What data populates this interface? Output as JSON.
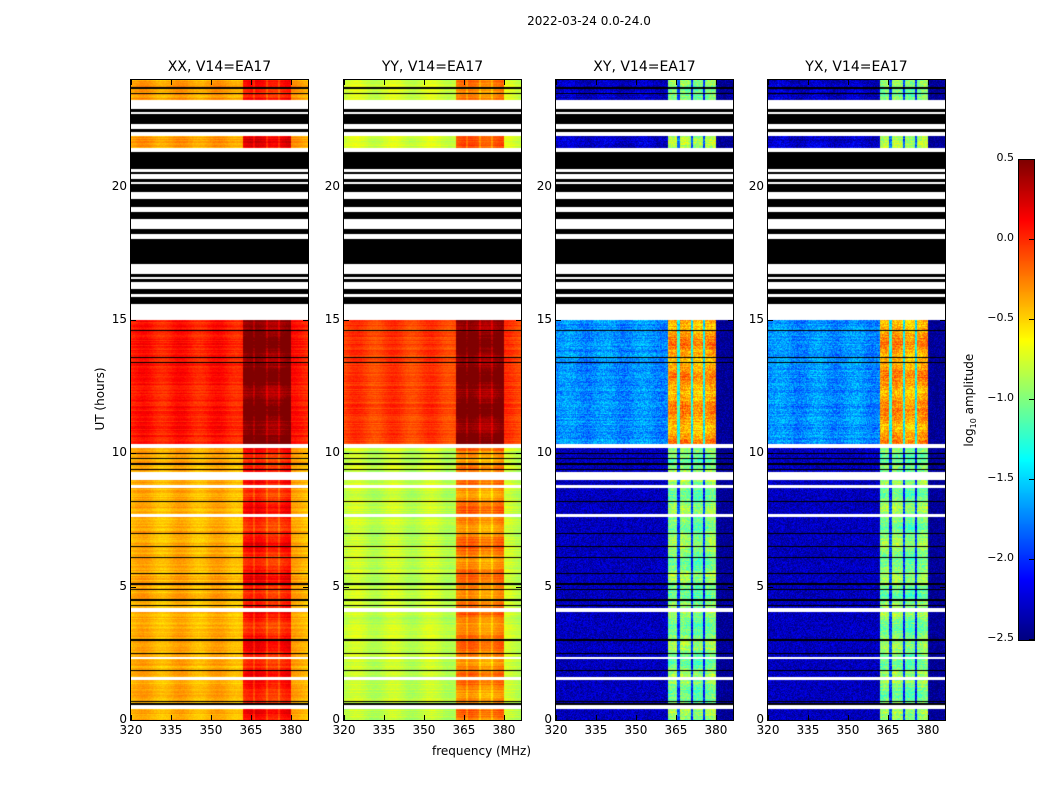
{
  "chart_data": {
    "type": "heatmap",
    "title": "2022-03-24 0.0-24.0",
    "xlabel": "frequency (MHz)",
    "ylabel": "UT (hours)",
    "xlim": [
      320,
      386.4
    ],
    "ylim": [
      0,
      24
    ],
    "xticks": [
      "320",
      "335",
      "350",
      "365",
      "380"
    ],
    "xtick_values": [
      320,
      335,
      350,
      365,
      380
    ],
    "yticks": [
      "0",
      "5",
      "10",
      "15",
      "20"
    ],
    "ytick_values": [
      0,
      5,
      10,
      15,
      20
    ],
    "colormap": "jet",
    "colorbar": {
      "label_main": "log",
      "label_sub": "10",
      "label_rest": " amplitude",
      "range": [
        -2.5,
        0.5
      ],
      "ticks": [
        "0.5",
        "0.0",
        "−0.5",
        "−1.0",
        "−1.5",
        "−2.0",
        "−2.5"
      ],
      "tick_values": [
        0.5,
        0.0,
        -0.5,
        -1.0,
        -1.5,
        -2.0,
        -2.5
      ]
    },
    "panels": [
      {
        "title": "XX, V14=EA17",
        "level_0_10": -0.4,
        "level_10_15": 0.05,
        "level_21_24": -0.35,
        "band_boost": 0.45,
        "cross": false
      },
      {
        "title": "YY, V14=EA17",
        "level_0_10": -0.8,
        "level_10_15": -0.05,
        "level_21_24": -0.75,
        "band_boost": 0.55,
        "cross": false
      },
      {
        "title": "XY, V14=EA17",
        "level_0_10": -2.35,
        "level_10_15": -1.7,
        "level_21_24": -2.3,
        "band_boost": 1.35,
        "cross": true
      },
      {
        "title": "YX, V14=EA17",
        "level_0_10": -2.35,
        "level_10_15": -1.7,
        "level_21_24": -2.3,
        "band_boost": 1.35,
        "cross": true
      }
    ],
    "rfi_band_mhz": [
      362,
      380
    ],
    "band_notches_mhz": [
      366,
      371,
      375.5
    ],
    "flagged_hours": [
      [
        0.4,
        0.55
      ],
      [
        1.5,
        1.6
      ],
      [
        2.3,
        2.36
      ],
      [
        4.05,
        4.2
      ],
      [
        7.6,
        7.72
      ],
      [
        8.7,
        8.8
      ],
      [
        9.0,
        9.3
      ],
      [
        10.2,
        10.36
      ],
      [
        15.0,
        15.6
      ],
      [
        21.3,
        21.45
      ],
      [
        21.9,
        22.05
      ],
      [
        22.9,
        23.25
      ]
    ],
    "black_block_hours": [
      20.7,
      21.3
    ],
    "striped_hours": [
      [
        15.6,
        20.7
      ],
      [
        22.05,
        22.9
      ]
    ],
    "black_lines_hours": [
      0.6,
      0.7,
      1.85,
      2.5,
      3.0,
      4.3,
      4.5,
      4.9,
      5.1,
      5.5,
      6.1,
      6.5,
      7.0,
      8.2,
      9.4,
      9.6,
      9.8,
      10.0,
      13.4,
      13.6,
      14.6,
      23.5,
      23.7
    ]
  }
}
